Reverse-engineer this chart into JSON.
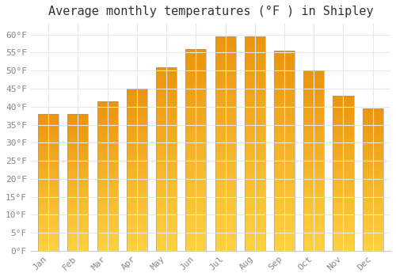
{
  "title": "Average monthly temperatures (°F ) in Shipley",
  "months": [
    "Jan",
    "Feb",
    "Mar",
    "Apr",
    "May",
    "Jun",
    "Jul",
    "Aug",
    "Sep",
    "Oct",
    "Nov",
    "Dec"
  ],
  "values": [
    38,
    38,
    41.5,
    45,
    51,
    56,
    59.5,
    59.5,
    55.5,
    50,
    43,
    39.5
  ],
  "bar_color_top": "#F0A000",
  "bar_color_bottom": "#FFD050",
  "ylim": [
    0,
    63
  ],
  "yticks": [
    0,
    5,
    10,
    15,
    20,
    25,
    30,
    35,
    40,
    45,
    50,
    55,
    60
  ],
  "ytick_labels": [
    "0°F",
    "5°F",
    "10°F",
    "15°F",
    "20°F",
    "25°F",
    "30°F",
    "35°F",
    "40°F",
    "45°F",
    "50°F",
    "55°F",
    "60°F"
  ],
  "background_color": "#FFFFFF",
  "grid_color": "#E8E8E8",
  "title_fontsize": 11,
  "tick_fontsize": 8,
  "bar_width": 0.7,
  "tick_color": "#888888",
  "title_color": "#333333"
}
